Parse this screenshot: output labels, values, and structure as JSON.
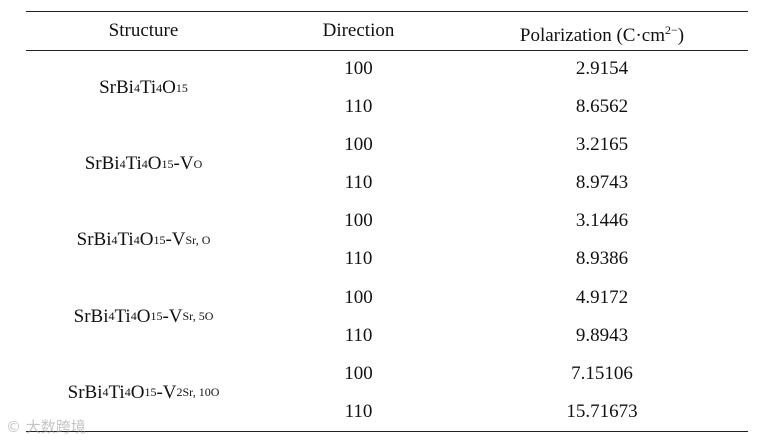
{
  "header": {
    "structure": "Structure",
    "direction": "Direction",
    "polarization_main": "Polarization (C·cm",
    "polarization_sup": "2−",
    "polarization_close": ")"
  },
  "rows": [
    {
      "structure": {
        "p1": "SrBi",
        "s1": "4",
        "p2": "Ti",
        "s2": "4",
        "p3": "O",
        "s3": "15",
        "p4": "",
        "s4": ""
      },
      "entries": [
        {
          "direction": "100",
          "polarization": "2.9154"
        },
        {
          "direction": "110",
          "polarization": "8.6562"
        }
      ]
    },
    {
      "structure": {
        "p1": "SrBi",
        "s1": "4",
        "p2": "Ti",
        "s2": "4",
        "p3": "O",
        "s3": "15",
        "p4": "-V",
        "s4": "O"
      },
      "entries": [
        {
          "direction": "100",
          "polarization": "3.2165"
        },
        {
          "direction": "110",
          "polarization": "8.9743"
        }
      ]
    },
    {
      "structure": {
        "p1": "SrBi",
        "s1": "4",
        "p2": "Ti",
        "s2": "4",
        "p3": "O",
        "s3": "15",
        "p4": "-V",
        "s4": "Sr, O"
      },
      "entries": [
        {
          "direction": "100",
          "polarization": "3.1446"
        },
        {
          "direction": "110",
          "polarization": "8.9386"
        }
      ]
    },
    {
      "structure": {
        "p1": "SrBi",
        "s1": "4",
        "p2": "Ti",
        "s2": "4",
        "p3": "O",
        "s3": "15",
        "p4": "-V",
        "s4": "Sr, 5O"
      },
      "entries": [
        {
          "direction": "100",
          "polarization": "4.9172"
        },
        {
          "direction": "110",
          "polarization": "9.8943"
        }
      ]
    },
    {
      "structure": {
        "p1": "SrBi",
        "s1": "4",
        "p2": "Ti",
        "s2": "4",
        "p3": "O",
        "s3": "15",
        "p4": "-V",
        "s4": "2Sr, 10O"
      },
      "entries": [
        {
          "direction": "100",
          "polarization": "7.15106"
        },
        {
          "direction": "110",
          "polarization": "15.71673"
        }
      ]
    }
  ],
  "watermark": "© 大数跨境"
}
